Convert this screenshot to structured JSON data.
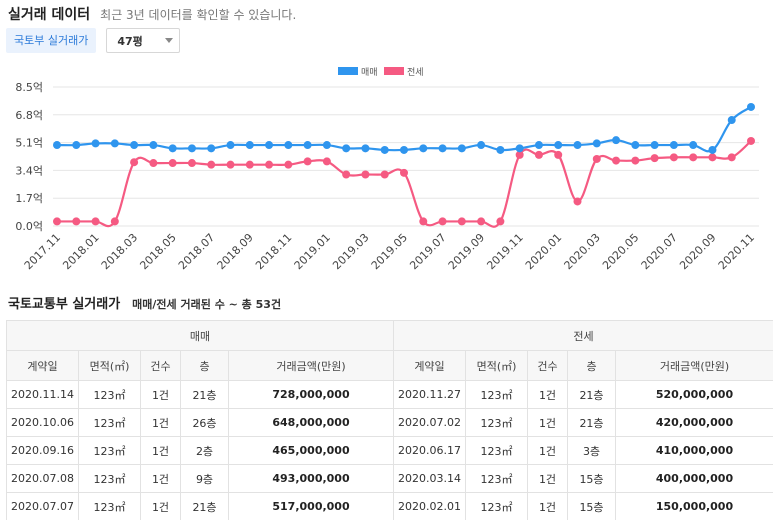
{
  "header": {
    "title": "실거래 데이터",
    "subtitle": "최근 3년 데이터를 확인할 수 있습니다."
  },
  "controls": {
    "source_button": "국토부 실거래가",
    "size_select": "47평"
  },
  "colors": {
    "sale": "#2f95ee",
    "jeonse": "#f55a82"
  },
  "chart_data": {
    "type": "line",
    "legend_position": "top-center",
    "grid": true,
    "ylim": [
      0,
      8.5
    ],
    "y_ticks": [
      "8.5억",
      "6.8억",
      "5.1억",
      "3.4억",
      "1.7억",
      "0.0억"
    ],
    "x_tick_labels": [
      "2017.11",
      "2018.01",
      "2018.03",
      "2018.05",
      "2018.07",
      "2018.09",
      "2018.11",
      "2019.01",
      "2019.03",
      "2019.05",
      "2019.07",
      "2019.09",
      "2019.11",
      "2020.01",
      "2020.03",
      "2020.05",
      "2020.07",
      "2020.09",
      "2020.11"
    ],
    "x": [
      "2017.11",
      "2017.12",
      "2018.01",
      "2018.02",
      "2018.03",
      "2018.04",
      "2018.05",
      "2018.06",
      "2018.07",
      "2018.08",
      "2018.09",
      "2018.10",
      "2018.11",
      "2018.12",
      "2019.01",
      "2019.02",
      "2019.03",
      "2019.04",
      "2019.05",
      "2019.06",
      "2019.07",
      "2019.08",
      "2019.09",
      "2019.10",
      "2019.11",
      "2019.12",
      "2020.01",
      "2020.02",
      "2020.03",
      "2020.04",
      "2020.05",
      "2020.06",
      "2020.07",
      "2020.08",
      "2020.09",
      "2020.10",
      "2020.11"
    ],
    "series": [
      {
        "name": "매매",
        "values": [
          4.95,
          4.95,
          5.05,
          5.05,
          4.95,
          4.95,
          4.75,
          4.75,
          4.75,
          4.95,
          4.95,
          4.95,
          4.95,
          4.95,
          4.95,
          4.75,
          4.75,
          4.65,
          4.65,
          4.75,
          4.75,
          4.75,
          4.95,
          4.65,
          4.75,
          4.95,
          4.95,
          4.95,
          5.05,
          5.25,
          4.95,
          4.95,
          4.95,
          4.95,
          4.65,
          6.48,
          7.28
        ]
      },
      {
        "name": "전세",
        "values": [
          0.28,
          0.28,
          0.28,
          0.28,
          3.9,
          3.85,
          3.85,
          3.85,
          3.75,
          3.75,
          3.75,
          3.75,
          3.75,
          3.95,
          3.95,
          3.15,
          3.15,
          3.15,
          3.25,
          0.28,
          0.28,
          0.28,
          0.28,
          0.28,
          4.35,
          4.35,
          4.35,
          1.5,
          4.1,
          4.0,
          4.0,
          4.15,
          4.2,
          4.2,
          4.2,
          4.2,
          5.2
        ]
      }
    ]
  },
  "section": {
    "title": "국토교통부 실거래가",
    "summary": "매매/전세 거래된 수 ~ 총 53건"
  },
  "table": {
    "sale_group": "매매",
    "jeonse_group": "전세",
    "columns": [
      "계약일",
      "면적(㎡)",
      "건수",
      "층",
      "거래금액(만원)"
    ],
    "sale_rows": [
      [
        "2020.11.14",
        "123㎡",
        "1건",
        "21층",
        "728,000,000"
      ],
      [
        "2020.10.06",
        "123㎡",
        "1건",
        "26층",
        "648,000,000"
      ],
      [
        "2020.09.16",
        "123㎡",
        "1건",
        "2층",
        "465,000,000"
      ],
      [
        "2020.07.08",
        "123㎡",
        "1건",
        "9층",
        "493,000,000"
      ],
      [
        "2020.07.07",
        "123㎡",
        "1건",
        "21층",
        "517,000,000"
      ]
    ],
    "jeonse_rows": [
      [
        "2020.11.27",
        "123㎡",
        "1건",
        "21층",
        "520,000,000"
      ],
      [
        "2020.07.02",
        "123㎡",
        "1건",
        "21층",
        "420,000,000"
      ],
      [
        "2020.06.17",
        "123㎡",
        "1건",
        "3층",
        "410,000,000"
      ],
      [
        "2020.03.14",
        "123㎡",
        "1건",
        "15층",
        "400,000,000"
      ],
      [
        "2020.02.01",
        "123㎡",
        "1건",
        "15층",
        "150,000,000"
      ]
    ]
  }
}
